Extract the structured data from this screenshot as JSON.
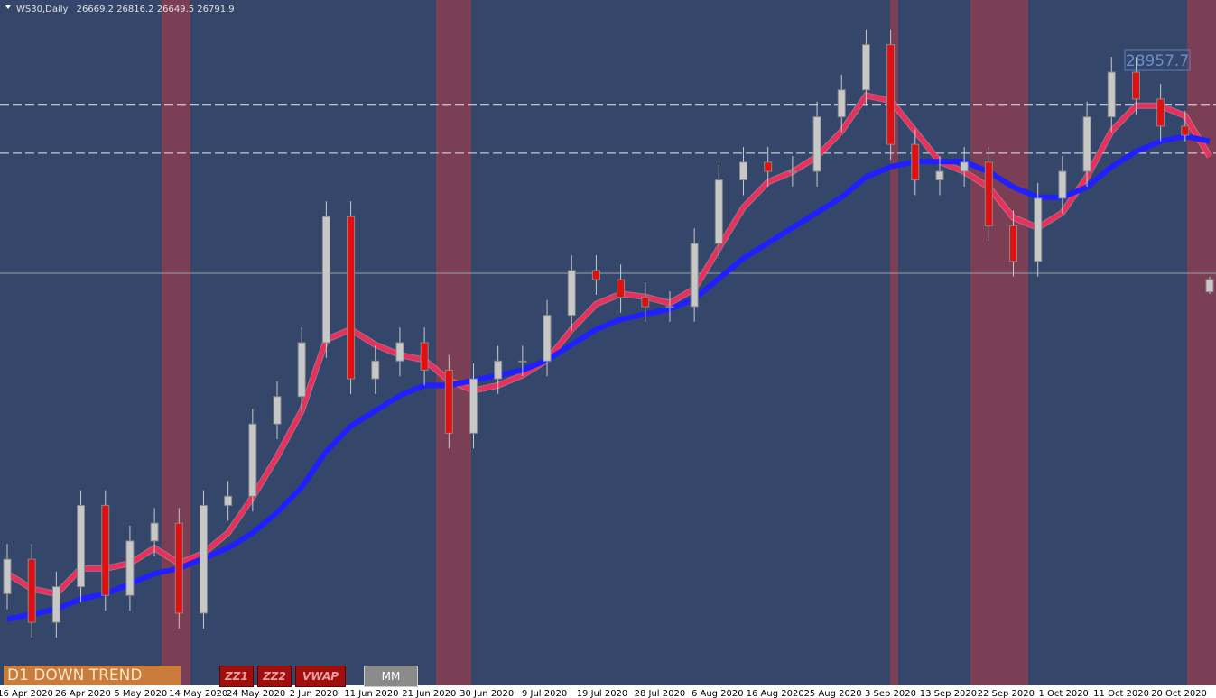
{
  "chart_data": {
    "type": "candlestick",
    "title": "WS30,Daily",
    "ylim": [
      22800,
      29540
    ],
    "x_labels": [
      "16 Apr 2020",
      "26 Apr 2020",
      "5 May 2020",
      "14 May 2020",
      "24 May 2020",
      "2 Jun 2020",
      "11 Jun 2020",
      "21 Jun 2020",
      "30 Jun 2020",
      "9 Jul 2020",
      "19 Jul 2020",
      "28 Jul 2020",
      "6 Aug 2020",
      "16 Aug 2020",
      "25 Aug 2020",
      "3 Sep 2020",
      "13 Sep 2020",
      "22 Sep 2020",
      "1 Oct 2020",
      "11 Oct 2020",
      "20 Oct 2020"
    ],
    "open": [
      23700,
      24040,
      23420,
      23770,
      24570,
      23685,
      24220,
      24395,
      23510,
      24570,
      24660,
      25370,
      25640,
      26170,
      27410,
      25815,
      25990,
      26170,
      25900,
      25280,
      25815,
      25990,
      25990,
      26440,
      26880,
      26790,
      26615,
      26525,
      26525,
      27145,
      27770,
      27945,
      27855,
      27855,
      28390,
      28655,
      29100,
      28120,
      27770,
      27855,
      27945,
      27320,
      26970,
      27590,
      27855,
      28390,
      28830,
      28565,
      28300,
      26669.2
    ],
    "high": [
      24190,
      24190,
      23920,
      24720,
      24720,
      24370,
      24545,
      24545,
      24720,
      24810,
      25520,
      25790,
      26320,
      27560,
      27560,
      26140,
      26320,
      26320,
      26050,
      25965,
      26140,
      26140,
      26590,
      27030,
      27030,
      26940,
      26765,
      26675,
      27295,
      27920,
      28095,
      28095,
      28005,
      28540,
      28805,
      29250,
      29250,
      28270,
      28005,
      28095,
      28095,
      27470,
      27740,
      28005,
      28540,
      28980,
      28980,
      28715,
      28450,
      26816.2
    ],
    "low": [
      23550,
      23270,
      23270,
      23620,
      23535,
      23535,
      24070,
      23360,
      23360,
      24420,
      24510,
      25220,
      25490,
      26020,
      25665,
      25665,
      25840,
      25750,
      25130,
      25130,
      25665,
      25840,
      25840,
      26290,
      26640,
      26465,
      26375,
      26375,
      26375,
      26995,
      27620,
      27705,
      27705,
      27705,
      28240,
      28505,
      27970,
      27620,
      27620,
      27705,
      27170,
      26820,
      26820,
      27440,
      27705,
      28240,
      28415,
      28150,
      28150,
      26649.5
    ],
    "close": [
      24040,
      23420,
      23770,
      24570,
      23685,
      24220,
      24395,
      23510,
      24570,
      24660,
      25370,
      25640,
      26170,
      27410,
      25815,
      25990,
      26170,
      25900,
      25280,
      25815,
      25990,
      25990,
      26440,
      26880,
      26790,
      26615,
      26525,
      26525,
      27145,
      27770,
      27945,
      27855,
      27855,
      28390,
      28655,
      29100,
      28120,
      27770,
      27855,
      27945,
      27320,
      26970,
      27590,
      27855,
      28390,
      28830,
      28565,
      28300,
      28210,
      26791.9
    ],
    "up_color": "#c8c8c8",
    "down_color": "#e01010",
    "series": [
      {
        "color": "#e8305a",
        "values": [
          23900,
          23750,
          23700,
          23950,
          23950,
          24000,
          24150,
          24000,
          24100,
          24300,
          24650,
          25050,
          25500,
          26200,
          26300,
          26150,
          26050,
          26000,
          25800,
          25700,
          25750,
          25850,
          26000,
          26300,
          26550,
          26650,
          26620,
          26560,
          26700,
          27100,
          27500,
          27750,
          27850,
          28000,
          28250,
          28600,
          28550,
          28250,
          27950,
          27850,
          27700,
          27400,
          27300,
          27450,
          27800,
          28250,
          28500,
          28500,
          28400,
          28000
        ]
      },
      {
        "color": "#1f1fff",
        "values": [
          23450,
          23500,
          23550,
          23650,
          23700,
          23800,
          23900,
          23950,
          24050,
          24150,
          24300,
          24500,
          24750,
          25100,
          25350,
          25500,
          25650,
          25750,
          25750,
          25800,
          25850,
          25900,
          26000,
          26150,
          26300,
          26400,
          26450,
          26500,
          26600,
          26800,
          27000,
          27150,
          27300,
          27450,
          27600,
          27800,
          27900,
          27950,
          27950,
          27950,
          27850,
          27700,
          27600,
          27600,
          27700,
          27900,
          28050,
          28150,
          28200,
          28150
        ]
      }
    ],
    "levels": [
      28513,
      28034
    ],
    "price_line": 26853,
    "price_label": 28957.7,
    "trend_label": "D1 DOWN TREND",
    "buttons": [
      "ZZ1",
      "ZZ2",
      "VWAP",
      "MM"
    ]
  }
}
